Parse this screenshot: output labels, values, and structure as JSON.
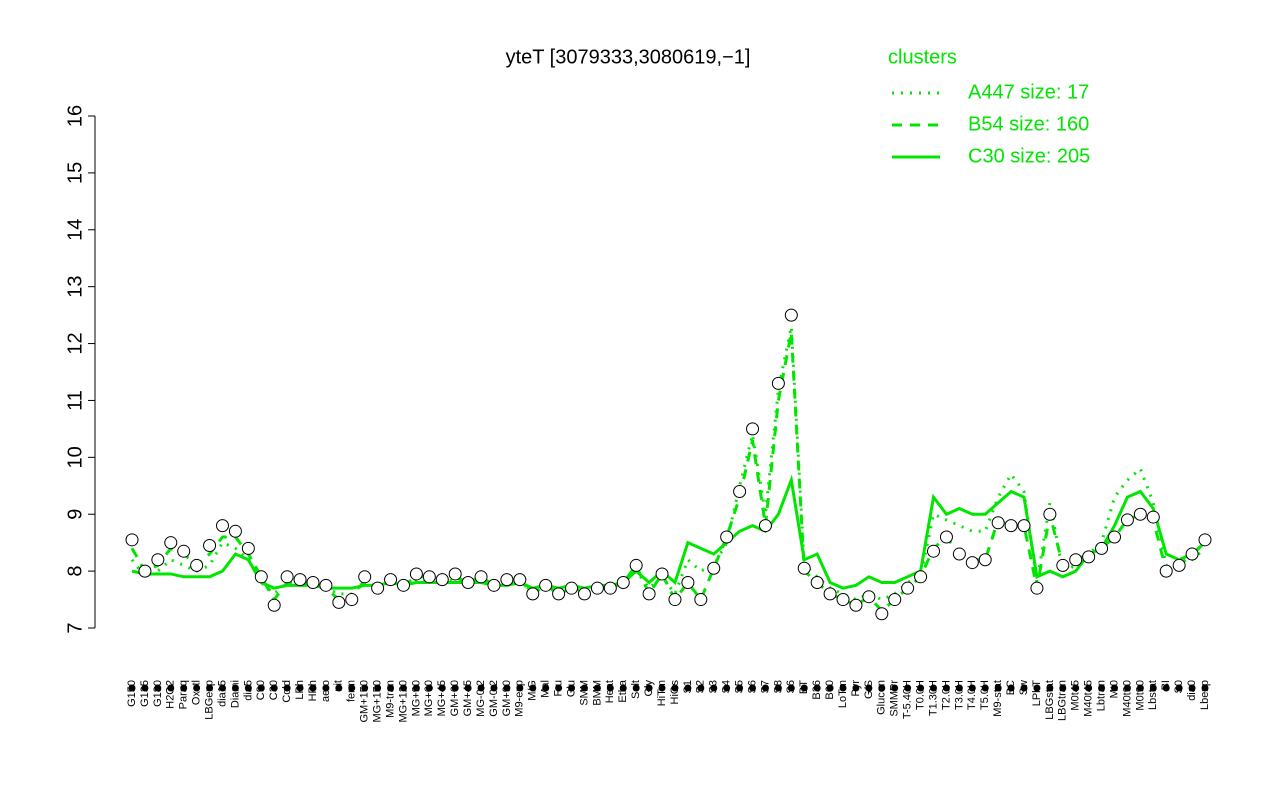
{
  "chart_data": {
    "type": "line",
    "title": "yteT [3079333,3080619,−1]",
    "legend_title": "clusters",
    "legend_position": "top-right",
    "point_color": "#ffffff",
    "categories": [
      "G150",
      "G135",
      "G180",
      "H2O2",
      "Paraq",
      "Oxctl",
      "LBGexp",
      "dia15",
      "Diami",
      "dia5",
      "C90",
      "C30",
      "Cold",
      "LPh",
      "HPh",
      "aero",
      "nit",
      "ferm",
      "GM+150",
      "MG+150",
      "M9-tran",
      "MG+120",
      "MG+90",
      "MG+60",
      "MG+45",
      "GM+60",
      "GM+45",
      "MG-0.2",
      "GM-0.2",
      "GM+90",
      "M9-exp",
      "M/G",
      "Mal",
      "Fru",
      "Glu",
      "SMM",
      "BMM",
      "Heat",
      "Etha",
      "Salt",
      "Gly",
      "HiTm",
      "HiOs",
      "S1",
      "S2",
      "S3",
      "S4",
      "S5",
      "S6",
      "S7",
      "S8",
      "S6",
      "BT",
      "B36",
      "B60",
      "LoTm",
      "Pyr",
      "G/S",
      "Glucon",
      "SMMPr",
      "T-5.40H",
      "T0.0H",
      "T1.30H",
      "T2.0H",
      "T3.0H",
      "T4.0H",
      "T5.0H",
      "M9-stat",
      "BC",
      "Sw",
      "LPhT",
      "LBGstat",
      "LBGtran",
      "M0t45",
      "M40t45",
      "Lbtran",
      "Mt0",
      "M40t90",
      "M0t90",
      "Lbstat",
      "BI",
      "S0",
      "dia0",
      "Lbexp"
    ],
    "values": [
      8.55,
      8.0,
      8.2,
      8.5,
      8.35,
      8.1,
      8.45,
      8.8,
      8.7,
      8.4,
      7.9,
      7.4,
      7.9,
      7.85,
      7.8,
      7.75,
      7.45,
      7.5,
      7.9,
      7.7,
      7.85,
      7.75,
      7.95,
      7.9,
      7.85,
      7.95,
      7.8,
      7.9,
      7.75,
      7.85,
      7.85,
      7.6,
      7.75,
      7.6,
      7.7,
      7.6,
      7.7,
      7.7,
      7.8,
      8.1,
      7.6,
      7.95,
      7.5,
      7.8,
      7.5,
      8.05,
      8.6,
      9.4,
      10.5,
      8.8,
      11.3,
      12.5,
      8.05,
      7.8,
      7.6,
      7.5,
      7.4,
      7.55,
      7.25,
      7.5,
      7.7,
      7.9,
      8.35,
      8.6,
      8.3,
      8.15,
      8.2,
      8.85,
      8.8,
      8.8,
      7.7,
      9.0,
      8.1,
      8.2,
      8.25,
      8.4,
      8.6,
      8.9,
      9.0,
      8.95,
      8.0,
      8.1,
      8.3,
      8.55
    ],
    "series": [
      {
        "name": "A447 size: 17",
        "color": "#00e600",
        "dash": "dotted",
        "values": [
          8.2,
          7.9,
          8.0,
          8.2,
          8.1,
          8.0,
          8.1,
          8.5,
          8.4,
          8.2,
          7.8,
          7.6,
          7.8,
          7.8,
          7.8,
          7.7,
          7.6,
          7.6,
          7.8,
          7.7,
          7.8,
          7.75,
          7.85,
          7.85,
          7.8,
          7.85,
          7.8,
          7.85,
          7.75,
          7.8,
          7.8,
          7.65,
          7.75,
          7.65,
          7.7,
          7.65,
          7.7,
          7.7,
          7.8,
          8.0,
          7.7,
          7.9,
          7.6,
          8.2,
          8.0,
          8.1,
          8.5,
          9.5,
          10.4,
          9.0,
          11.2,
          12.3,
          8.1,
          7.9,
          7.7,
          7.6,
          7.5,
          7.6,
          7.5,
          7.6,
          7.8,
          7.9,
          9.0,
          8.9,
          8.8,
          8.7,
          8.7,
          9.3,
          9.7,
          9.4,
          7.8,
          9.2,
          8.0,
          8.1,
          8.3,
          8.5,
          9.3,
          9.6,
          9.8,
          9.2,
          8.1,
          8.1,
          8.2,
          8.4
        ]
      },
      {
        "name": "B54 size: 160",
        "color": "#00e600",
        "dash": "dashed",
        "values": [
          8.4,
          8.0,
          8.1,
          8.4,
          8.3,
          8.1,
          8.3,
          8.6,
          8.6,
          8.3,
          7.9,
          7.5,
          7.8,
          7.8,
          7.8,
          7.7,
          7.5,
          7.5,
          7.85,
          7.7,
          7.85,
          7.75,
          7.9,
          7.9,
          7.85,
          7.9,
          7.8,
          7.9,
          7.75,
          7.85,
          7.85,
          7.6,
          7.75,
          7.6,
          7.7,
          7.6,
          7.7,
          7.7,
          7.8,
          8.1,
          7.6,
          7.95,
          7.5,
          7.8,
          7.5,
          8.05,
          8.6,
          9.3,
          10.3,
          8.8,
          11.0,
          12.2,
          8.0,
          7.8,
          7.6,
          7.5,
          7.4,
          7.55,
          7.3,
          7.5,
          7.7,
          7.9,
          8.4,
          8.6,
          8.3,
          8.2,
          8.2,
          8.9,
          8.8,
          8.8,
          7.7,
          9.0,
          8.1,
          8.2,
          8.3,
          8.4,
          8.6,
          8.9,
          9.0,
          8.9,
          8.0,
          8.1,
          8.3,
          8.5
        ]
      },
      {
        "name": "C30 size: 205",
        "color": "#00e600",
        "dash": "solid",
        "values": [
          8.0,
          7.95,
          7.95,
          7.95,
          7.9,
          7.9,
          7.9,
          8.0,
          8.3,
          8.2,
          7.8,
          7.7,
          7.75,
          7.75,
          7.75,
          7.7,
          7.7,
          7.7,
          7.75,
          7.75,
          7.8,
          7.75,
          7.8,
          7.8,
          7.8,
          7.8,
          7.8,
          7.8,
          7.75,
          7.75,
          7.8,
          7.7,
          7.75,
          7.7,
          7.75,
          7.7,
          7.75,
          7.75,
          7.8,
          8.0,
          7.8,
          8.0,
          7.8,
          8.5,
          8.4,
          8.3,
          8.5,
          8.7,
          8.8,
          8.7,
          9.0,
          9.6,
          8.2,
          8.3,
          7.8,
          7.7,
          7.75,
          7.9,
          7.8,
          7.8,
          7.9,
          8.0,
          9.3,
          9.0,
          9.1,
          9.0,
          9.0,
          9.2,
          9.4,
          9.3,
          7.9,
          8.0,
          7.9,
          8.0,
          8.3,
          8.4,
          8.8,
          9.3,
          9.4,
          9.1,
          8.3,
          8.2,
          8.3,
          8.5
        ]
      }
    ],
    "ylim": [
      7,
      16
    ],
    "yticks": [
      7,
      8,
      9,
      10,
      11,
      12,
      13,
      14,
      15,
      16
    ]
  }
}
